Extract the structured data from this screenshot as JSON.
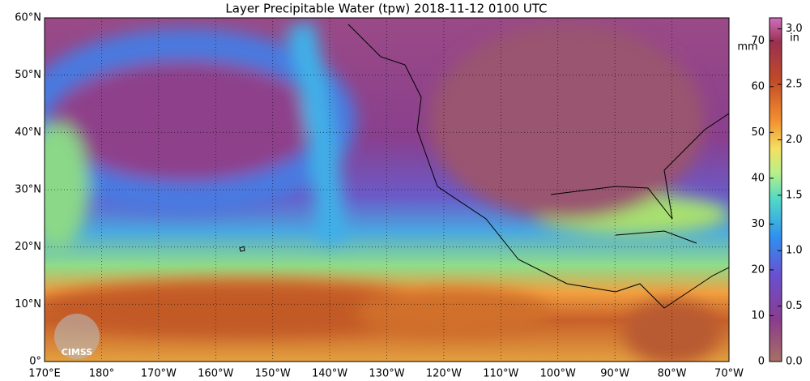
{
  "map": {
    "title": "Layer Precipitable Water (tpw)  2018-11-12 0100 UTC",
    "lat_labels": [
      "60°N",
      "50°N",
      "40°N",
      "30°N",
      "20°N",
      "10°N",
      "0°"
    ],
    "lon_labels": [
      "170°E",
      "180°",
      "170°W",
      "160°W",
      "150°W",
      "140°W",
      "130°W",
      "120°W",
      "110°W",
      "100°W",
      "90°W",
      "80°W",
      "70°W"
    ],
    "logo": "CIMSS"
  },
  "colorbar": {
    "mm_unit": "mm",
    "in_unit": "in",
    "mm_lim": [
      0,
      75
    ],
    "mm_ticks": [
      0,
      10,
      20,
      30,
      40,
      50,
      60,
      70
    ],
    "in_lim": [
      0,
      3.1
    ],
    "in_ticks": [
      {
        "value": 0,
        "label": "0.0"
      },
      {
        "value": 0.5,
        "label": "0.5"
      },
      {
        "value": 1,
        "label": "1.0"
      },
      {
        "value": 1.5,
        "label": "1.5"
      },
      {
        "value": 2,
        "label": "2.0"
      },
      {
        "value": 2.5,
        "label": "2.5"
      },
      {
        "value": 3,
        "label": "3.0"
      }
    ]
  }
}
